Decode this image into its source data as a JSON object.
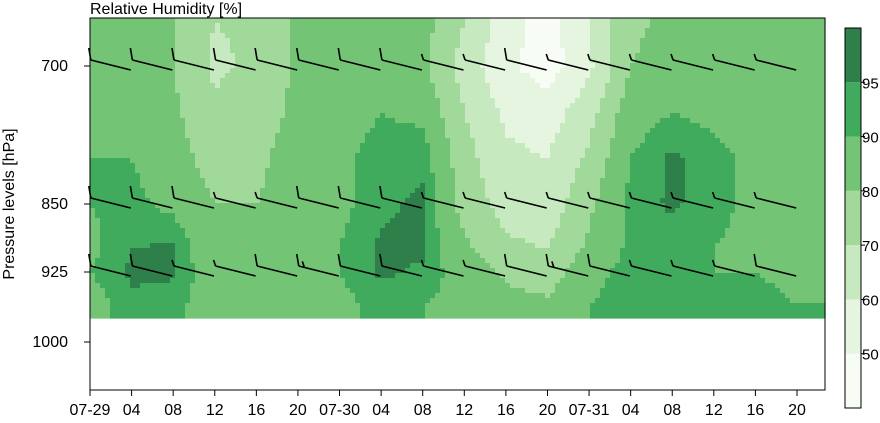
{
  "chart_data": {
    "type": "heatmap",
    "title": "Relative Humidity [%]",
    "ylabel": "Pressure levels [hPa]",
    "xlabel": "",
    "y_axis": {
      "scale": "pressure-inverted",
      "ticks": [
        700,
        850,
        925,
        1000
      ],
      "tick_labels": [
        "700",
        "850",
        "925",
        "1000"
      ],
      "range": [
        1050,
        650
      ]
    },
    "x_axis": {
      "range_hours": [
        0,
        68
      ],
      "ticks": [
        {
          "hour": 0,
          "label": "07-29"
        },
        {
          "hour": 4,
          "label": "04"
        },
        {
          "hour": 8,
          "label": "08"
        },
        {
          "hour": 12,
          "label": "12"
        },
        {
          "hour": 16,
          "label": "16"
        },
        {
          "hour": 20,
          "label": "20"
        },
        {
          "hour": 24,
          "label": "07-30"
        },
        {
          "hour": 28,
          "label": "04"
        },
        {
          "hour": 32,
          "label": "08"
        },
        {
          "hour": 36,
          "label": "12"
        },
        {
          "hour": 40,
          "label": "16"
        },
        {
          "hour": 44,
          "label": "20"
        },
        {
          "hour": 48,
          "label": "07-31"
        },
        {
          "hour": 52,
          "label": "04"
        },
        {
          "hour": 56,
          "label": "08"
        },
        {
          "hour": 60,
          "label": "12"
        },
        {
          "hour": 64,
          "label": "16"
        },
        {
          "hour": 68,
          "label": "20"
        }
      ]
    },
    "colorbar": {
      "levels": [
        50,
        60,
        70,
        80,
        90,
        95
      ],
      "labels": [
        "50",
        "60",
        "70",
        "80",
        "90",
        "95"
      ],
      "colors": [
        "#f7fcf5",
        "#e5f5e0",
        "#c7e9c0",
        "#a1d99b",
        "#74c476",
        "#41ab5d",
        "#2f7f4a"
      ]
    },
    "rh_field": {
      "hours": [
        0,
        4,
        8,
        12,
        16,
        20,
        24,
        28,
        32,
        36,
        40,
        44,
        48,
        52,
        56,
        60,
        64,
        68
      ],
      "levels": [
        650,
        700,
        750,
        800,
        850,
        900,
        925,
        960
      ],
      "values": [
        [
          82,
          84,
          80,
          70,
          72,
          82,
          85,
          86,
          84,
          70,
          55,
          45,
          60,
          78,
          82,
          84,
          84,
          82
        ],
        [
          80,
          84,
          80,
          68,
          72,
          82,
          85,
          86,
          82,
          66,
          52,
          45,
          58,
          80,
          84,
          84,
          84,
          82
        ],
        [
          86,
          86,
          82,
          72,
          76,
          82,
          86,
          90,
          88,
          70,
          58,
          55,
          66,
          86,
          90,
          88,
          86,
          84
        ],
        [
          90,
          90,
          84,
          76,
          78,
          84,
          88,
          93,
          94,
          74,
          62,
          60,
          72,
          90,
          96,
          92,
          88,
          86
        ],
        [
          90,
          92,
          88,
          80,
          80,
          84,
          88,
          94,
          96,
          76,
          66,
          64,
          78,
          92,
          96,
          92,
          88,
          86
        ],
        [
          88,
          95,
          96,
          82,
          82,
          84,
          90,
          96,
          96,
          82,
          72,
          70,
          82,
          92,
          92,
          90,
          88,
          86
        ],
        [
          90,
          96,
          96,
          84,
          84,
          84,
          90,
          96,
          94,
          86,
          78,
          74,
          88,
          92,
          90,
          90,
          90,
          88
        ],
        [
          86,
          94,
          92,
          86,
          86,
          86,
          88,
          92,
          90,
          88,
          84,
          82,
          90,
          92,
          90,
          90,
          92,
          90
        ]
      ],
      "data_bottom_level": 960
    },
    "wind_barbs": {
      "levels": [
        700,
        850,
        925
      ],
      "hours": [
        2,
        6,
        10,
        14,
        18,
        22,
        26,
        30,
        34,
        38,
        42,
        46,
        50,
        54,
        58,
        62,
        66
      ],
      "speed_kt": [
        [
          10,
          10,
          10,
          10,
          10,
          10,
          10,
          10,
          5,
          5,
          10,
          5,
          5,
          5,
          5,
          5,
          5
        ],
        [
          10,
          10,
          10,
          5,
          5,
          10,
          10,
          10,
          5,
          5,
          5,
          5,
          5,
          5,
          5,
          5,
          5
        ],
        [
          10,
          10,
          5,
          5,
          10,
          15,
          10,
          10,
          5,
          5,
          10,
          15,
          10,
          5,
          5,
          5,
          10
        ]
      ]
    }
  }
}
